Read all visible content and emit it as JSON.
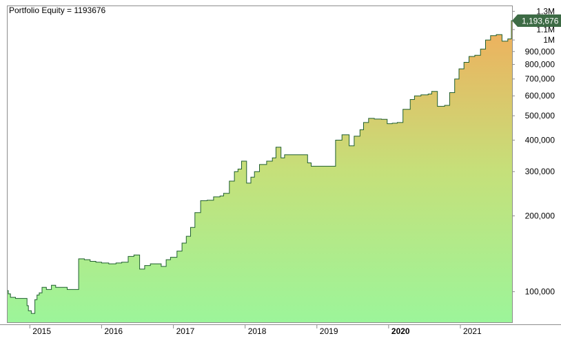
{
  "title": "Portfolio Equity = 1193676",
  "chart_data": {
    "type": "area",
    "title": "Portfolio Equity = 1193676",
    "yscale": "log",
    "ylim": [
      78000,
      1320000
    ],
    "xlim": [
      2014.68,
      2021.72
    ],
    "y_ticks": [
      {
        "value": 1300000,
        "label": "1.3M"
      },
      {
        "value": 1100000,
        "label": "1.1M"
      },
      {
        "value": 1000000,
        "label": "1M"
      },
      {
        "value": 900000,
        "label": "900,000"
      },
      {
        "value": 800000,
        "label": "800,000"
      },
      {
        "value": 700000,
        "label": "700,000"
      },
      {
        "value": 600000,
        "label": "600,000"
      },
      {
        "value": 500000,
        "label": "500,000"
      },
      {
        "value": 400000,
        "label": "400,000"
      },
      {
        "value": 300000,
        "label": "300,000"
      },
      {
        "value": 200000,
        "label": "200,000"
      },
      {
        "value": 100000,
        "label": "100,000"
      }
    ],
    "x_ticks": [
      {
        "value": 2015.0,
        "label": "2015",
        "bold": false
      },
      {
        "value": 2016.0,
        "label": "2016",
        "bold": false
      },
      {
        "value": 2017.0,
        "label": "2017",
        "bold": false
      },
      {
        "value": 2018.0,
        "label": "2018",
        "bold": false
      },
      {
        "value": 2019.0,
        "label": "2019",
        "bold": false
      },
      {
        "value": 2020.0,
        "label": "2020",
        "bold": true
      },
      {
        "value": 2021.0,
        "label": "2021",
        "bold": false
      }
    ],
    "last_value_label": "1,193,676",
    "colors": {
      "line": "#1e5e2e",
      "fill_top": "#f0ae5c",
      "fill_mid": "#c5e07a",
      "fill_bottom": "#9cf59a",
      "badge": "#3d6b45",
      "axis": "#8c8c8c"
    },
    "series": [
      {
        "values": [
          [
            2014.68,
            101000
          ],
          [
            2014.7,
            98000
          ],
          [
            2014.73,
            95000
          ],
          [
            2014.8,
            94000
          ],
          [
            2014.88,
            94000
          ],
          [
            2014.96,
            88000
          ],
          [
            2014.98,
            84000
          ],
          [
            2015.02,
            82000
          ],
          [
            2015.07,
            93000
          ],
          [
            2015.1,
            97000
          ],
          [
            2015.13,
            99000
          ],
          [
            2015.17,
            104000
          ],
          [
            2015.23,
            102000
          ],
          [
            2015.3,
            106000
          ],
          [
            2015.36,
            104000
          ],
          [
            2015.45,
            104000
          ],
          [
            2015.52,
            102000
          ],
          [
            2015.62,
            102000
          ],
          [
            2015.68,
            135000
          ],
          [
            2015.76,
            134000
          ],
          [
            2015.84,
            132000
          ],
          [
            2015.92,
            131000
          ],
          [
            2016.0,
            130000
          ],
          [
            2016.1,
            129000
          ],
          [
            2016.2,
            130000
          ],
          [
            2016.28,
            131000
          ],
          [
            2016.37,
            138000
          ],
          [
            2016.45,
            140000
          ],
          [
            2016.53,
            123000
          ],
          [
            2016.6,
            127000
          ],
          [
            2016.68,
            129000
          ],
          [
            2016.75,
            129000
          ],
          [
            2016.83,
            126000
          ],
          [
            2016.9,
            134000
          ],
          [
            2016.96,
            137000
          ],
          [
            2017.05,
            145000
          ],
          [
            2017.12,
            156000
          ],
          [
            2017.18,
            166000
          ],
          [
            2017.24,
            180000
          ],
          [
            2017.3,
            206000
          ],
          [
            2017.38,
            230000
          ],
          [
            2017.47,
            231000
          ],
          [
            2017.56,
            238000
          ],
          [
            2017.65,
            240000
          ],
          [
            2017.7,
            246000
          ],
          [
            2017.78,
            275000
          ],
          [
            2017.85,
            300000
          ],
          [
            2017.9,
            307000
          ],
          [
            2017.95,
            330000
          ],
          [
            2018.02,
            270000
          ],
          [
            2018.08,
            285000
          ],
          [
            2018.13,
            300000
          ],
          [
            2018.2,
            320000
          ],
          [
            2018.3,
            330000
          ],
          [
            2018.38,
            340000
          ],
          [
            2018.43,
            375000
          ],
          [
            2018.5,
            340000
          ],
          [
            2018.55,
            350000
          ],
          [
            2018.62,
            350000
          ],
          [
            2018.7,
            350000
          ],
          [
            2018.8,
            350000
          ],
          [
            2018.87,
            325000
          ],
          [
            2018.92,
            315000
          ],
          [
            2019.0,
            315000
          ],
          [
            2019.1,
            315000
          ],
          [
            2019.22,
            315000
          ],
          [
            2019.26,
            400000
          ],
          [
            2019.35,
            420000
          ],
          [
            2019.45,
            380000
          ],
          [
            2019.52,
            415000
          ],
          [
            2019.6,
            440000
          ],
          [
            2019.65,
            470000
          ],
          [
            2019.72,
            488000
          ],
          [
            2019.8,
            485000
          ],
          [
            2019.9,
            484000
          ],
          [
            2019.98,
            465000
          ],
          [
            2020.05,
            467000
          ],
          [
            2020.12,
            470000
          ],
          [
            2020.2,
            530000
          ],
          [
            2020.3,
            580000
          ],
          [
            2020.36,
            600000
          ],
          [
            2020.45,
            605000
          ],
          [
            2020.55,
            610000
          ],
          [
            2020.6,
            625000
          ],
          [
            2020.68,
            545000
          ],
          [
            2020.78,
            550000
          ],
          [
            2020.85,
            618000
          ],
          [
            2020.92,
            700000
          ],
          [
            2020.98,
            768000
          ],
          [
            2021.05,
            815000
          ],
          [
            2021.12,
            860000
          ],
          [
            2021.2,
            870000
          ],
          [
            2021.28,
            920000
          ],
          [
            2021.35,
            1000000
          ],
          [
            2021.42,
            1040000
          ],
          [
            2021.5,
            1050000
          ],
          [
            2021.58,
            990000
          ],
          [
            2021.66,
            1010000
          ],
          [
            2021.71,
            1193676
          ],
          [
            2021.72,
            1193676
          ]
        ]
      }
    ]
  }
}
